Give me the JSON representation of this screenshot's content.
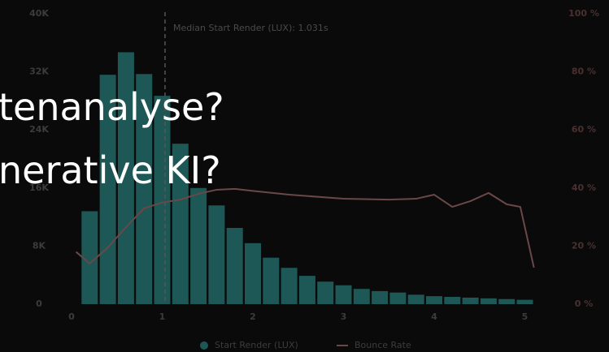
{
  "chart_data": {
    "type": "bar_line",
    "overlay_text": [
      "tenanalyse?",
      "nerative KI?"
    ],
    "annotations": [
      {
        "x": 1.031,
        "text": "Median Start Render (LUX): 1.031s"
      }
    ],
    "series": [
      {
        "name": "Start Render (LUX)",
        "color": "#1d5856",
        "type": "bar",
        "x": [
          0.2,
          0.4,
          0.6,
          0.8,
          1.0,
          1.2,
          1.4,
          1.6,
          1.8,
          2.0,
          2.2,
          2.4,
          2.6,
          2.8,
          3.0,
          3.2,
          3.4,
          3.6,
          3.8,
          4.0,
          4.2,
          4.4,
          4.6,
          4.8,
          5.0
        ],
        "values": [
          12800,
          31600,
          34700,
          31700,
          28700,
          22100,
          16000,
          13600,
          10500,
          8400,
          6400,
          5000,
          3900,
          3100,
          2600,
          2100,
          1800,
          1600,
          1300,
          1100,
          1000,
          900,
          800,
          700,
          600
        ]
      },
      {
        "name": "Bounce Rate",
        "color": "#6a4848",
        "type": "line",
        "axis": "y2",
        "x": [
          0.05,
          0.2,
          0.4,
          0.6,
          0.8,
          1.0,
          1.2,
          1.4,
          1.6,
          1.8,
          2.0,
          2.4,
          3.0,
          3.5,
          3.8,
          4.0,
          4.2,
          4.4,
          4.6,
          4.8,
          4.95,
          5.1
        ],
        "values": [
          18,
          14,
          19.5,
          26.5,
          33,
          35,
          36,
          38,
          39.4,
          39.7,
          39,
          37.7,
          36.3,
          36,
          36.3,
          37.7,
          33.5,
          35.5,
          38.3,
          34.4,
          33.5,
          12.6
        ]
      }
    ],
    "xlim": [
      0,
      5.3
    ],
    "xticks": [
      0,
      1,
      2,
      3,
      4,
      5
    ],
    "ylim": [
      0,
      40000
    ],
    "yticks": [
      {
        "value": 0,
        "label": "0"
      },
      {
        "value": 8000,
        "label": "8K"
      },
      {
        "value": 16000,
        "label": "16K"
      },
      {
        "value": 24000,
        "label": "24K"
      },
      {
        "value": 32000,
        "label": "32K"
      },
      {
        "value": 40000,
        "label": "40K"
      }
    ],
    "y2lim": [
      0,
      100
    ],
    "y2ticks": [
      {
        "value": 0,
        "label": "0 %"
      },
      {
        "value": 20,
        "label": "20 %"
      },
      {
        "value": 40,
        "label": "40 %"
      },
      {
        "value": 60,
        "label": "60 %"
      },
      {
        "value": 80,
        "label": "80 %"
      },
      {
        "value": 100,
        "label": "100 %"
      }
    ]
  }
}
